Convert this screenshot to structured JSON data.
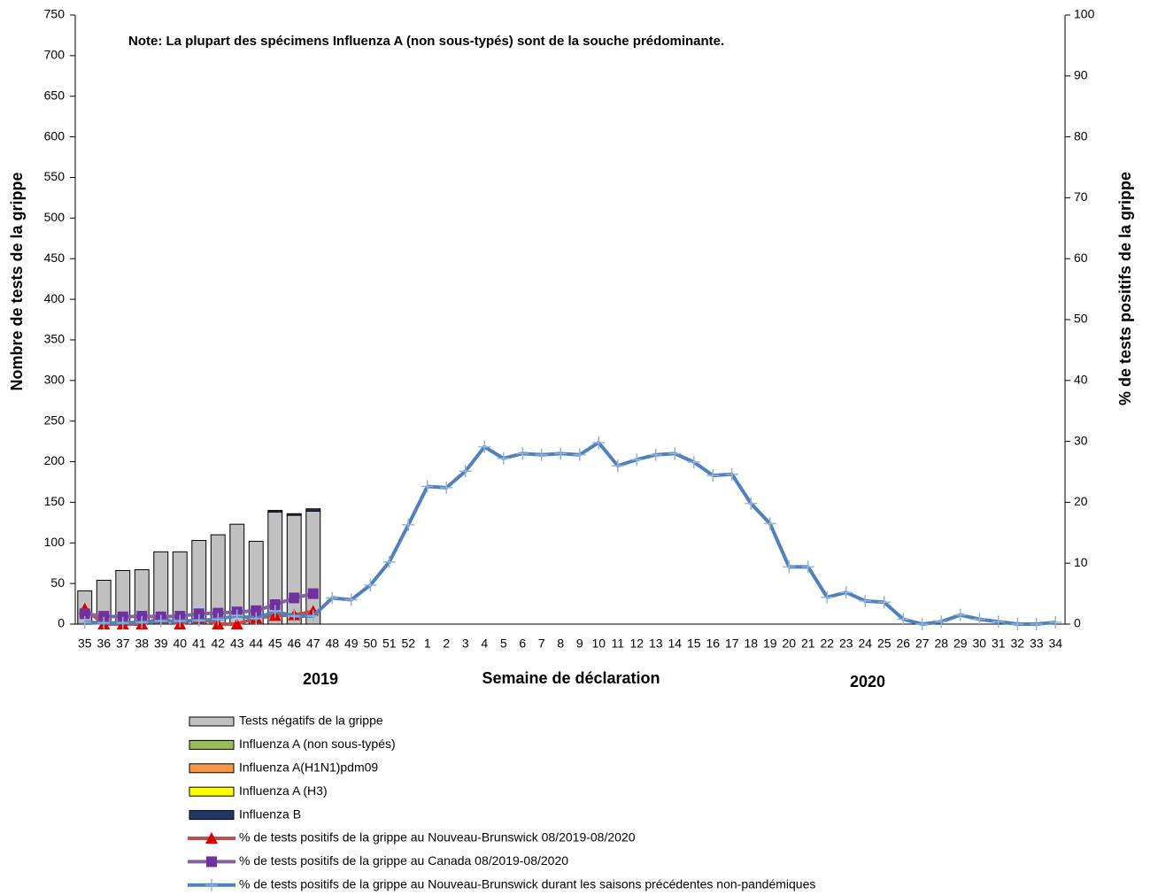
{
  "chart_data": {
    "type": "bar",
    "stacked": true,
    "annotations": [
      "Note: La plupart des spécimens Influenza A (non sous-typés) sont de la souche prédominante.",
      "2019",
      "2020"
    ],
    "x_label": "Semaine de déclaration",
    "y_label": "Nombre de tests de la grippe",
    "y2_label": "% de tests positifs de la grippe",
    "categories": [
      "35",
      "36",
      "37",
      "38",
      "39",
      "40",
      "41",
      "42",
      "43",
      "44",
      "45",
      "46",
      "47",
      "48",
      "49",
      "50",
      "51",
      "52",
      "1",
      "2",
      "3",
      "4",
      "5",
      "6",
      "7",
      "8",
      "9",
      "10",
      "11",
      "12",
      "13",
      "14",
      "15",
      "16",
      "17",
      "18",
      "19",
      "20",
      "21",
      "22",
      "23",
      "24",
      "25",
      "26",
      "27",
      "28",
      "29",
      "30",
      "31",
      "32",
      "33",
      "34"
    ],
    "ylim": [
      0,
      750
    ],
    "yticks": [
      0,
      50,
      100,
      150,
      200,
      250,
      300,
      350,
      400,
      450,
      500,
      550,
      600,
      650,
      700,
      750
    ],
    "y2lim": [
      0,
      100
    ],
    "y2ticks": [
      0,
      10,
      20,
      30,
      40,
      50,
      60,
      70,
      80,
      90,
      100
    ],
    "series": [
      {
        "name": "Tests négatifs de la grippe",
        "type": "bar",
        "color": "#c0c0c0",
        "values": [
          41,
          54,
          66,
          67,
          89,
          89,
          103,
          110,
          123,
          102,
          138,
          134,
          139,
          null,
          null,
          null,
          null,
          null,
          null,
          null,
          null,
          null,
          null,
          null,
          null,
          null,
          null,
          null,
          null,
          null,
          null,
          null,
          null,
          null,
          null,
          null,
          null,
          null,
          null,
          null,
          null,
          null,
          null,
          null,
          null,
          null,
          null,
          null,
          null,
          null,
          null,
          null
        ]
      },
      {
        "name": "Influenza A (non sous-typés)",
        "type": "bar",
        "color": "#9bbb59",
        "values": [
          0,
          0,
          0,
          0,
          0,
          0,
          0,
          0,
          0,
          0,
          0,
          0,
          0,
          null,
          null,
          null,
          null,
          null,
          null,
          null,
          null,
          null,
          null,
          null,
          null,
          null,
          null,
          null,
          null,
          null,
          null,
          null,
          null,
          null,
          null,
          null,
          null,
          null,
          null,
          null,
          null,
          null,
          null,
          null,
          null,
          null,
          null,
          null,
          null,
          null,
          null,
          null
        ]
      },
      {
        "name": "Influenza A(H1N1)pdm09",
        "type": "bar",
        "color": "#f79646",
        "values": [
          0,
          0,
          0,
          0,
          0,
          0,
          0,
          0,
          0,
          0,
          0,
          0,
          0,
          null,
          null,
          null,
          null,
          null,
          null,
          null,
          null,
          null,
          null,
          null,
          null,
          null,
          null,
          null,
          null,
          null,
          null,
          null,
          null,
          null,
          null,
          null,
          null,
          null,
          null,
          null,
          null,
          null,
          null,
          null,
          null,
          null,
          null,
          null,
          null,
          null,
          null,
          null
        ]
      },
      {
        "name": "Influenza A (H3)",
        "type": "bar",
        "color": "#ffff00",
        "values": [
          0,
          0,
          0,
          0,
          0,
          0,
          0,
          0,
          0,
          0,
          0,
          0,
          0,
          null,
          null,
          null,
          null,
          null,
          null,
          null,
          null,
          null,
          null,
          null,
          null,
          null,
          null,
          null,
          null,
          null,
          null,
          null,
          null,
          null,
          null,
          null,
          null,
          null,
          null,
          null,
          null,
          null,
          null,
          null,
          null,
          null,
          null,
          null,
          null,
          null,
          null,
          null
        ]
      },
      {
        "name": "Influenza B",
        "type": "bar",
        "color": "#1f3864",
        "values": [
          0,
          0,
          0,
          0,
          0,
          0,
          0,
          0,
          0,
          0,
          2,
          2,
          3,
          null,
          null,
          null,
          null,
          null,
          null,
          null,
          null,
          null,
          null,
          null,
          null,
          null,
          null,
          null,
          null,
          null,
          null,
          null,
          null,
          null,
          null,
          null,
          null,
          null,
          null,
          null,
          null,
          null,
          null,
          null,
          null,
          null,
          null,
          null,
          null,
          null,
          null,
          null
        ]
      },
      {
        "name": "% de tests positifs de la grippe  au Nouveau-Brunswick 08/2019-08/2020",
        "type": "line",
        "axis": "y2",
        "marker": "triangle",
        "color": "#c0504d",
        "marker_color": "#e00000",
        "values": [
          2.5,
          0,
          0,
          0,
          1,
          0,
          1,
          0,
          0,
          1,
          1.4,
          1.5,
          2.1,
          null,
          null,
          null,
          null,
          null,
          null,
          null,
          null,
          null,
          null,
          null,
          null,
          null,
          null,
          null,
          null,
          null,
          null,
          null,
          null,
          null,
          null,
          null,
          null,
          null,
          null,
          null,
          null,
          null,
          null,
          null,
          null,
          null,
          null,
          null,
          null,
          null,
          null,
          null
        ]
      },
      {
        "name": "% de tests positifs de la grippe  au Canada 08/2019-08/2020",
        "type": "line",
        "axis": "y2",
        "marker": "square",
        "color": "#8064a2",
        "marker_color": "#7030a0",
        "values": [
          1.7,
          1.3,
          1.2,
          1.3,
          1.2,
          1.3,
          1.7,
          1.8,
          2,
          2.2,
          3.2,
          4.3,
          5,
          null,
          null,
          null,
          null,
          null,
          null,
          null,
          null,
          null,
          null,
          null,
          null,
          null,
          null,
          null,
          null,
          null,
          null,
          null,
          null,
          null,
          null,
          null,
          null,
          null,
          null,
          null,
          null,
          null,
          null,
          null,
          null,
          null,
          null,
          null,
          null,
          null,
          null,
          null
        ]
      },
      {
        "name": "% de tests positifs de la grippe  au Nouveau-Brunswick durant les saisons précédentes non-pandémiques",
        "type": "line",
        "axis": "y2",
        "marker": "cross",
        "color": "#4f81bd",
        "marker_color": "#95b3d7",
        "values": [
          0.3,
          0.2,
          0.2,
          0.3,
          0.5,
          0.5,
          0.6,
          0.8,
          1.4,
          0.9,
          2.1,
          1.3,
          1.3,
          4.3,
          4,
          6.4,
          10.2,
          16.3,
          22.6,
          22.4,
          25.1,
          29.1,
          27.2,
          28,
          27.8,
          28,
          27.8,
          29.8,
          26,
          27,
          27.8,
          28,
          26.6,
          24.4,
          24.6,
          19.8,
          16.5,
          9.4,
          9.4,
          4.4,
          5.2,
          3.8,
          3.6,
          0.8,
          0,
          0.4,
          1.5,
          0.8,
          0.4,
          0,
          0,
          0.3
        ]
      }
    ]
  }
}
